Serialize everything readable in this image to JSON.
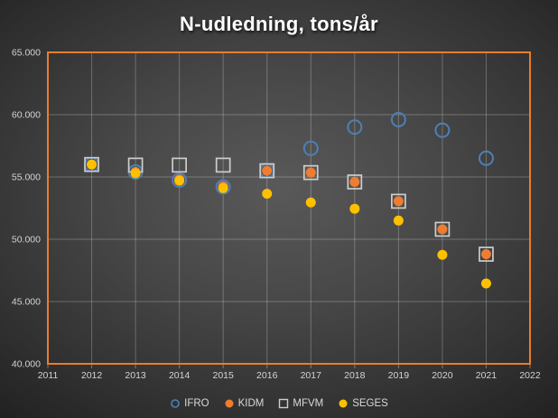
{
  "chart_data": {
    "type": "scatter",
    "title": "N-udledning, tons/år",
    "x": [
      2012,
      2013,
      2014,
      2015,
      2016,
      2017,
      2018,
      2019,
      2020,
      2021
    ],
    "series": [
      {
        "name": "IFRO",
        "marker": "open-circle",
        "color": "#4e7fb5",
        "values": [
          56000,
          55400,
          54750,
          54200,
          55500,
          57300,
          59000,
          59600,
          58750,
          56500
        ]
      },
      {
        "name": "KIDM",
        "marker": "filled-circle",
        "color": "#ed7d31",
        "values": [
          56000,
          55400,
          54800,
          54250,
          55500,
          55350,
          54600,
          53050,
          50800,
          48800
        ]
      },
      {
        "name": "MFVM",
        "marker": "open-square",
        "color": "#cdcdcd",
        "values": [
          56000,
          55950,
          55950,
          55950,
          55500,
          55350,
          54600,
          53050,
          50800,
          48800
        ]
      },
      {
        "name": "SEGES",
        "marker": "filled-circle",
        "color": "#ffc000",
        "values": [
          56000,
          55300,
          54700,
          54100,
          53650,
          52950,
          52450,
          51500,
          48750,
          46450
        ]
      }
    ],
    "xlim": [
      2011,
      2022
    ],
    "ylim": [
      40000,
      65000
    ],
    "x_ticks": [
      2011,
      2012,
      2013,
      2014,
      2015,
      2016,
      2017,
      2018,
      2019,
      2020,
      2021,
      2022
    ],
    "y_ticks": [
      {
        "value": 65000,
        "label": "65.000"
      },
      {
        "value": 60000,
        "label": "60.000"
      },
      {
        "value": 55000,
        "label": "55.000"
      },
      {
        "value": 50000,
        "label": "50.000"
      },
      {
        "value": 45000,
        "label": "45.000"
      },
      {
        "value": 40000,
        "label": "40.000"
      }
    ],
    "grid": true,
    "legend_position": "bottom",
    "plot_border_color": "#e87d2e",
    "gridline_color": "rgba(255,255,255,0.25)",
    "axis_label_color": "#d6d3d3"
  }
}
